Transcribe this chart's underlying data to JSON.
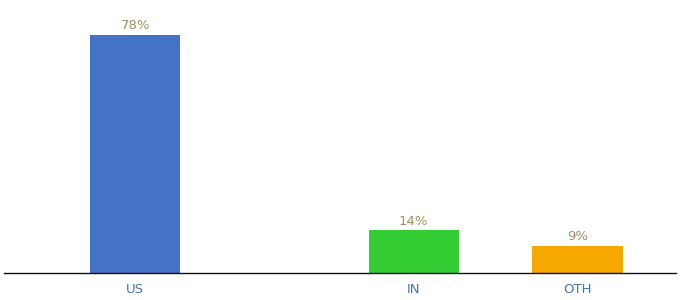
{
  "categories": [
    "US",
    "IN",
    "OTH"
  ],
  "values": [
    78,
    14,
    9
  ],
  "bar_colors": [
    "#4472c4",
    "#33cc33",
    "#f5a800"
  ],
  "label_color": "#a09060",
  "tick_color": "#4472c4",
  "background_color": "#ffffff",
  "ylim": [
    0,
    88
  ],
  "bar_width": 0.55,
  "label_fontsize": 9.5,
  "tick_fontsize": 9.5,
  "x_positions": [
    0.5,
    2.2,
    3.2
  ]
}
